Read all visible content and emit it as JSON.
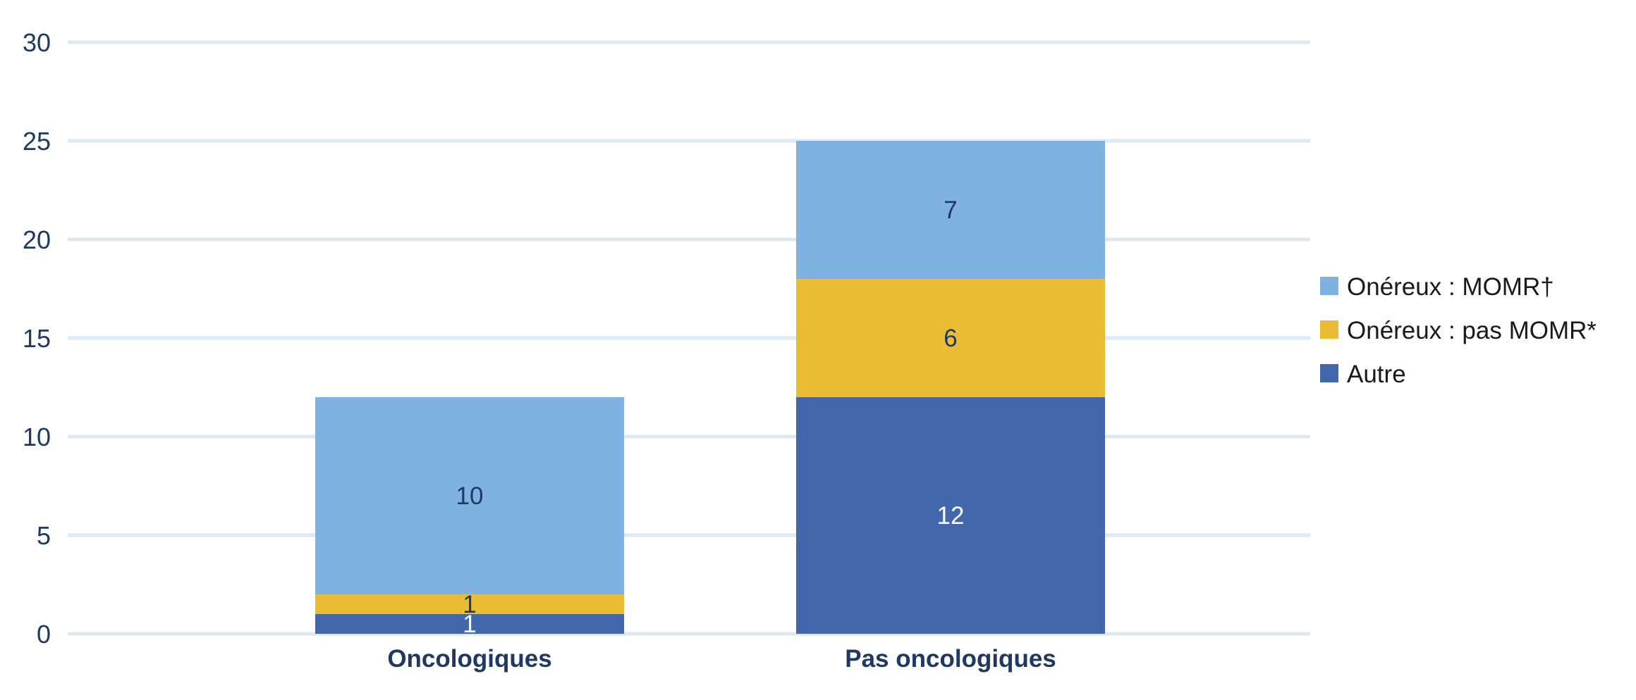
{
  "chart_data": {
    "type": "bar",
    "stacked": true,
    "categories": [
      "Oncologiques",
      "Pas oncologiques"
    ],
    "series": [
      {
        "name": "Autre",
        "values": [
          1,
          12
        ],
        "color": "#4466aa",
        "label_color": "#ffffff"
      },
      {
        "name": "Onéreux : pas MOMR*",
        "values": [
          1,
          6
        ],
        "color": "#ebbd37",
        "label_color": "#1f3864"
      },
      {
        "name": "Onéreux : MOMR†",
        "values": [
          10,
          7
        ],
        "color": "#7fb1e1",
        "label_color": "#1f3864"
      }
    ],
    "legend_order": [
      "Onéreux : MOMR†",
      "Onéreux : pas MOMR*",
      "Autre"
    ],
    "yticks": [
      "0",
      "5",
      "10",
      "15",
      "20",
      "25",
      "30"
    ],
    "ylim": [
      0,
      30
    ],
    "grid": true,
    "gridline_color": "#dbe8f5",
    "axis_text_color": "#1f3864",
    "legend_position": "right"
  }
}
